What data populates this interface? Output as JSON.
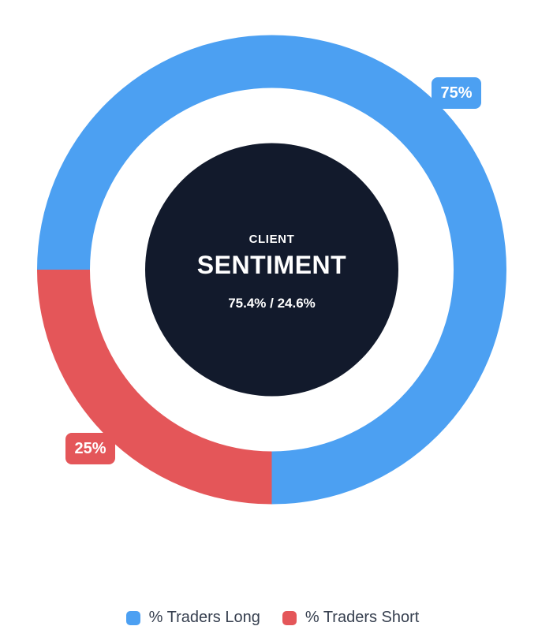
{
  "chart_data": {
    "type": "pie",
    "variant": "doughnut",
    "categories": [
      "% Traders Long",
      "% Traders Short"
    ],
    "values": [
      75,
      25
    ],
    "colors": [
      "#4CA0F2",
      "#E45659"
    ],
    "rotation_deg": -90,
    "data_labels": [
      "75%",
      "25%"
    ],
    "legend_position": "bottom",
    "center_circle": {
      "bg": "#121A2C",
      "eyebrow": "CLIENT",
      "title": "SENTIMENT",
      "detail": "75.4% / 24.6%"
    }
  },
  "badges": {
    "long": "75%",
    "short": "25%"
  },
  "legend": {
    "items": [
      {
        "label": "% Traders Long",
        "color": "#4CA0F2"
      },
      {
        "label": "% Traders Short",
        "color": "#E45659"
      }
    ]
  }
}
